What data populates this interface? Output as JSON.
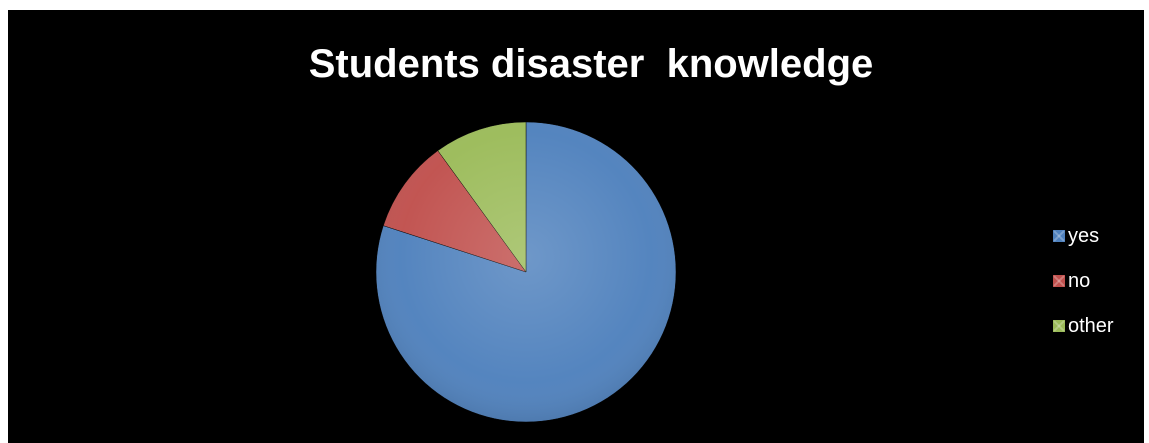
{
  "chart_data": {
    "type": "pie",
    "title": "Students disaster  knowledge",
    "slices": [
      {
        "label": "yes",
        "value": 80,
        "color": "#4f81bd"
      },
      {
        "label": "no",
        "value": 10,
        "color": "#c0504d"
      },
      {
        "label": "other",
        "value": 10,
        "color": "#9bbb59"
      }
    ],
    "start_angle_deg": 0,
    "direction": "clockwise",
    "legend_position": "right",
    "background": "#000000"
  }
}
